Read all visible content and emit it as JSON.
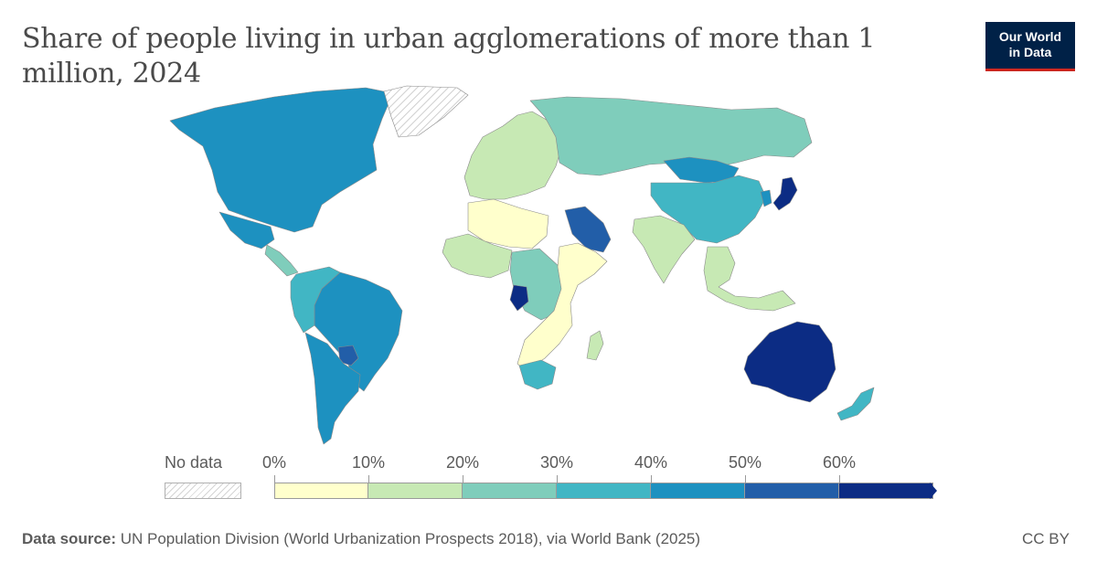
{
  "title": "Share of people living in urban agglomerations of more than 1 million, 2024",
  "logo": {
    "line1": "Our World",
    "line2": "in Data",
    "bg": "#002147",
    "accent": "#ce261e"
  },
  "legend": {
    "no_data_label": "No data",
    "ticks": [
      "0%",
      "10%",
      "20%",
      "30%",
      "40%",
      "50%",
      "60%"
    ],
    "colors": [
      "#ffffcc",
      "#c7e9b4",
      "#7fcdbb",
      "#41b6c4",
      "#1d91c0",
      "#225ea8",
      "#0c2c84"
    ]
  },
  "source": {
    "label": "Data source:",
    "text": "UN Population Division (World Urbanization Prospects 2018), via World Bank (2025)"
  },
  "license": "CC BY",
  "map_regions": [
    {
      "name": "United States & Canada",
      "value": 45
    },
    {
      "name": "Greenland",
      "value": null
    },
    {
      "name": "Mexico",
      "value": 45
    },
    {
      "name": "Central America",
      "value": 25
    },
    {
      "name": "Brazil",
      "value": 45
    },
    {
      "name": "Andean region",
      "value": 35
    },
    {
      "name": "Paraguay",
      "value": 55
    },
    {
      "name": "Argentina & Chile",
      "value": 45
    },
    {
      "name": "Europe",
      "value": 15
    },
    {
      "name": "Russia",
      "value": 25
    },
    {
      "name": "Saudi Arabia",
      "value": 55
    },
    {
      "name": "Sahara region",
      "value": 5
    },
    {
      "name": "West Africa",
      "value": 15
    },
    {
      "name": "Central Africa",
      "value": 25
    },
    {
      "name": "Republic of the Congo",
      "value": 65
    },
    {
      "name": "East Africa",
      "value": 5
    },
    {
      "name": "South Africa",
      "value": 35
    },
    {
      "name": "Madagascar",
      "value": 15
    },
    {
      "name": "Mongolia",
      "value": 45
    },
    {
      "name": "China",
      "value": 35
    },
    {
      "name": "India",
      "value": 15
    },
    {
      "name": "Japan",
      "value": 65
    },
    {
      "name": "Korea",
      "value": 45
    },
    {
      "name": "Southeast Asia",
      "value": 15
    },
    {
      "name": "Australia",
      "value": 65
    },
    {
      "name": "New Zealand",
      "value": 35
    }
  ]
}
